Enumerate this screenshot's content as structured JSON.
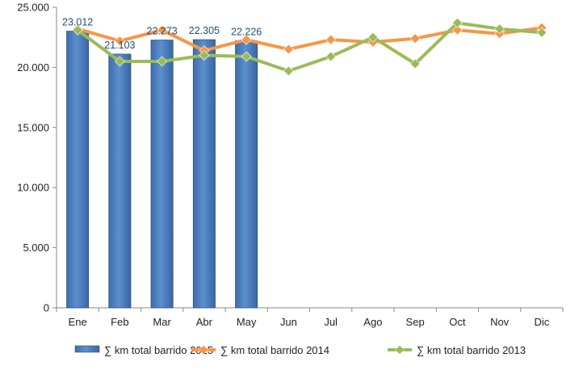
{
  "chart_data": {
    "type": "bar",
    "categories": [
      "Ene",
      "Feb",
      "Mar",
      "Abr",
      "May",
      "Jun",
      "Jul",
      "Ago",
      "Sep",
      "Oct",
      "Nov",
      "Dic"
    ],
    "ylim": [
      0,
      25000
    ],
    "yticks": [
      0,
      5000,
      10000,
      15000,
      20000,
      25000
    ],
    "ytick_labels": [
      "0",
      "5.000",
      "10.000",
      "15.000",
      "20.000",
      "25.000"
    ],
    "grid": false,
    "legend_position": "bottom",
    "series": [
      {
        "name": "∑ km total barrido 2015",
        "type": "bar",
        "color": "#4f81bd",
        "values": [
          23012,
          21103,
          22273,
          22305,
          22226,
          null,
          null,
          null,
          null,
          null,
          null,
          null
        ],
        "data_labels": [
          "23.012",
          "21.103",
          "22.273",
          "22.305",
          "22.226"
        ]
      },
      {
        "name": "∑ km total barrido 2014",
        "type": "line",
        "color": "#f79646",
        "values": [
          23200,
          22200,
          23100,
          21400,
          22300,
          21500,
          22300,
          22100,
          22400,
          23100,
          22800,
          23300
        ]
      },
      {
        "name": "∑ km total barrido 2013",
        "type": "line",
        "color": "#9bbb59",
        "values": [
          23100,
          20500,
          20500,
          21000,
          20900,
          19700,
          20900,
          22500,
          20300,
          23700,
          23200,
          22900
        ]
      }
    ]
  }
}
